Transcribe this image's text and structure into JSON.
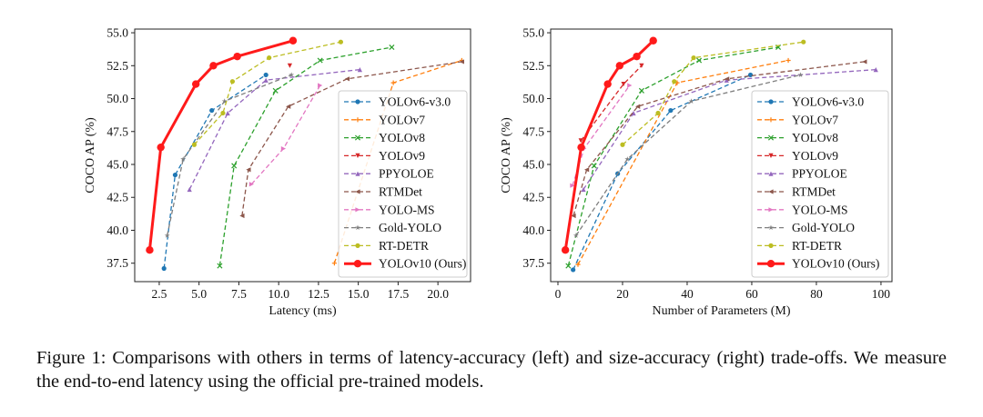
{
  "caption": "Figure 1: Comparisons with others in terms of latency-accuracy (left) and size-accuracy (right) trade-offs. We measure the end-to-end latency using the official pre-trained models.",
  "chart_data": [
    {
      "type": "line",
      "xlabel": "Latency (ms)",
      "ylabel": "COCO AP (%)",
      "xlim": [
        0.96,
        22.05
      ],
      "ylim": [
        36.1,
        55.28
      ],
      "xticks": [
        "2.5",
        "5.0",
        "7.5",
        "10.0",
        "12.5",
        "15.0",
        "17.5",
        "20.0"
      ],
      "yticks": [
        "37.5",
        "40.0",
        "42.5",
        "45.0",
        "47.5",
        "50.0",
        "52.5",
        "55.0"
      ],
      "grid": false,
      "legend_placement": "lower-right",
      "series": [
        {
          "name": "YOLOv6-v3.0",
          "color": "#1f77b4",
          "marker": "dot",
          "points": [
            [
              2.8,
              37.1
            ],
            [
              3.5,
              44.2
            ],
            [
              5.8,
              49.1
            ],
            [
              9.2,
              51.8
            ]
          ]
        },
        {
          "name": "YOLOv7",
          "color": "#ff7f0e",
          "marker": "plus",
          "points": [
            [
              13.5,
              37.5
            ],
            [
              17.2,
              51.2
            ],
            [
              21.5,
              52.9
            ]
          ]
        },
        {
          "name": "YOLOv8",
          "color": "#2ca02c",
          "marker": "x",
          "points": [
            [
              6.3,
              37.3
            ],
            [
              7.2,
              44.9
            ],
            [
              9.8,
              50.6
            ],
            [
              12.6,
              52.9
            ],
            [
              17.1,
              53.9
            ]
          ]
        },
        {
          "name": "YOLOv9",
          "color": "#d62728",
          "marker": "tri-down",
          "points": [
            [
              10.7,
              52.5
            ]
          ]
        },
        {
          "name": "PPYOLOE",
          "color": "#9467bd",
          "marker": "tri-up",
          "points": [
            [
              4.4,
              43.1
            ],
            [
              6.8,
              48.9
            ],
            [
              9.2,
              51.4
            ],
            [
              15.1,
              52.2
            ]
          ]
        },
        {
          "name": "RTMDet",
          "color": "#8c564b",
          "marker": "tri-left",
          "points": [
            [
              7.7,
              41.1
            ],
            [
              8.1,
              44.6
            ],
            [
              10.6,
              49.4
            ],
            [
              14.3,
              51.5
            ],
            [
              21.5,
              52.8
            ]
          ]
        },
        {
          "name": "YOLO-MS",
          "color": "#e377c2",
          "marker": "tri-right",
          "points": [
            [
              8.3,
              43.5
            ],
            [
              10.3,
              46.2
            ],
            [
              12.6,
              51.0
            ]
          ]
        },
        {
          "name": "Gold-YOLO",
          "color": "#7f7f7f",
          "marker": "star",
          "points": [
            [
              3.0,
              39.6
            ],
            [
              4.0,
              45.4
            ],
            [
              6.6,
              49.8
            ],
            [
              10.8,
              51.8
            ]
          ]
        },
        {
          "name": "RT-DETR",
          "color": "#bcbd22",
          "marker": "dot",
          "points": [
            [
              4.7,
              46.5
            ],
            [
              6.5,
              48.9
            ],
            [
              7.1,
              51.3
            ],
            [
              9.4,
              53.1
            ],
            [
              13.9,
              54.3
            ]
          ]
        },
        {
          "name": "YOLOv10 (Ours)",
          "color": "#ff1a1a",
          "marker": "circle",
          "bold": true,
          "points": [
            [
              1.9,
              38.5
            ],
            [
              2.6,
              46.3
            ],
            [
              4.8,
              51.1
            ],
            [
              5.9,
              52.5
            ],
            [
              7.4,
              53.2
            ],
            [
              10.9,
              54.4
            ]
          ]
        }
      ]
    },
    {
      "type": "line",
      "xlabel": "Number of Parameters (M)",
      "ylabel": "COCO AP (%)",
      "xlim": [
        -2.25,
        103.4
      ],
      "ylim": [
        36.1,
        55.28
      ],
      "xticks": [
        "0",
        "20",
        "40",
        "60",
        "80",
        "100"
      ],
      "yticks": [
        "37.5",
        "40.0",
        "42.5",
        "45.0",
        "47.5",
        "50.0",
        "52.5",
        "55.0"
      ],
      "grid": false,
      "legend_placement": "lower-right",
      "series": [
        {
          "name": "YOLOv6-v3.0",
          "color": "#1f77b4",
          "marker": "dot",
          "points": [
            [
              4.7,
              37.0
            ],
            [
              18.5,
              44.3
            ],
            [
              34.9,
              49.1
            ],
            [
              59.6,
              51.8
            ]
          ]
        },
        {
          "name": "YOLOv7",
          "color": "#ff7f0e",
          "marker": "plus",
          "points": [
            [
              6.2,
              37.4
            ],
            [
              36.9,
              51.2
            ],
            [
              71.3,
              52.9
            ]
          ]
        },
        {
          "name": "YOLOv8",
          "color": "#2ca02c",
          "marker": "x",
          "points": [
            [
              3.2,
              37.3
            ],
            [
              11.2,
              44.9
            ],
            [
              25.9,
              50.6
            ],
            [
              43.7,
              52.9
            ],
            [
              68.2,
              53.9
            ]
          ]
        },
        {
          "name": "YOLOv9",
          "color": "#d62728",
          "marker": "tri-down",
          "points": [
            [
              7.1,
              46.8
            ],
            [
              20.3,
              51.1
            ],
            [
              25.9,
              52.5
            ]
          ]
        },
        {
          "name": "PPYOLOE",
          "color": "#9467bd",
          "marker": "tri-up",
          "points": [
            [
              7.9,
              43.1
            ],
            [
              23.4,
              48.9
            ],
            [
              52.2,
              51.4
            ],
            [
              98.4,
              52.2
            ]
          ]
        },
        {
          "name": "RTMDet",
          "color": "#8c564b",
          "marker": "tri-left",
          "points": [
            [
              4.8,
              41.1
            ],
            [
              8.9,
              44.6
            ],
            [
              24.7,
              49.4
            ],
            [
              52.3,
              51.5
            ],
            [
              94.9,
              52.8
            ]
          ]
        },
        {
          "name": "YOLO-MS",
          "color": "#e377c2",
          "marker": "tri-right",
          "points": [
            [
              4.5,
              43.4
            ],
            [
              8.1,
              46.2
            ],
            [
              22.2,
              51.0
            ]
          ]
        },
        {
          "name": "Gold-YOLO",
          "color": "#7f7f7f",
          "marker": "star",
          "points": [
            [
              5.6,
              39.6
            ],
            [
              21.5,
              45.4
            ],
            [
              41.3,
              49.8
            ],
            [
              75.1,
              51.8
            ]
          ]
        },
        {
          "name": "RT-DETR",
          "color": "#bcbd22",
          "marker": "dot",
          "points": [
            [
              20.0,
              46.5
            ],
            [
              31.0,
              48.9
            ],
            [
              36.0,
              51.3
            ],
            [
              42.0,
              53.1
            ],
            [
              76.0,
              54.3
            ]
          ]
        },
        {
          "name": "YOLOv10 (Ours)",
          "color": "#ff1a1a",
          "marker": "circle",
          "bold": true,
          "points": [
            [
              2.3,
              38.5
            ],
            [
              7.2,
              46.3
            ],
            [
              15.4,
              51.1
            ],
            [
              19.1,
              52.5
            ],
            [
              24.4,
              53.2
            ],
            [
              29.5,
              54.4
            ]
          ]
        }
      ]
    }
  ]
}
